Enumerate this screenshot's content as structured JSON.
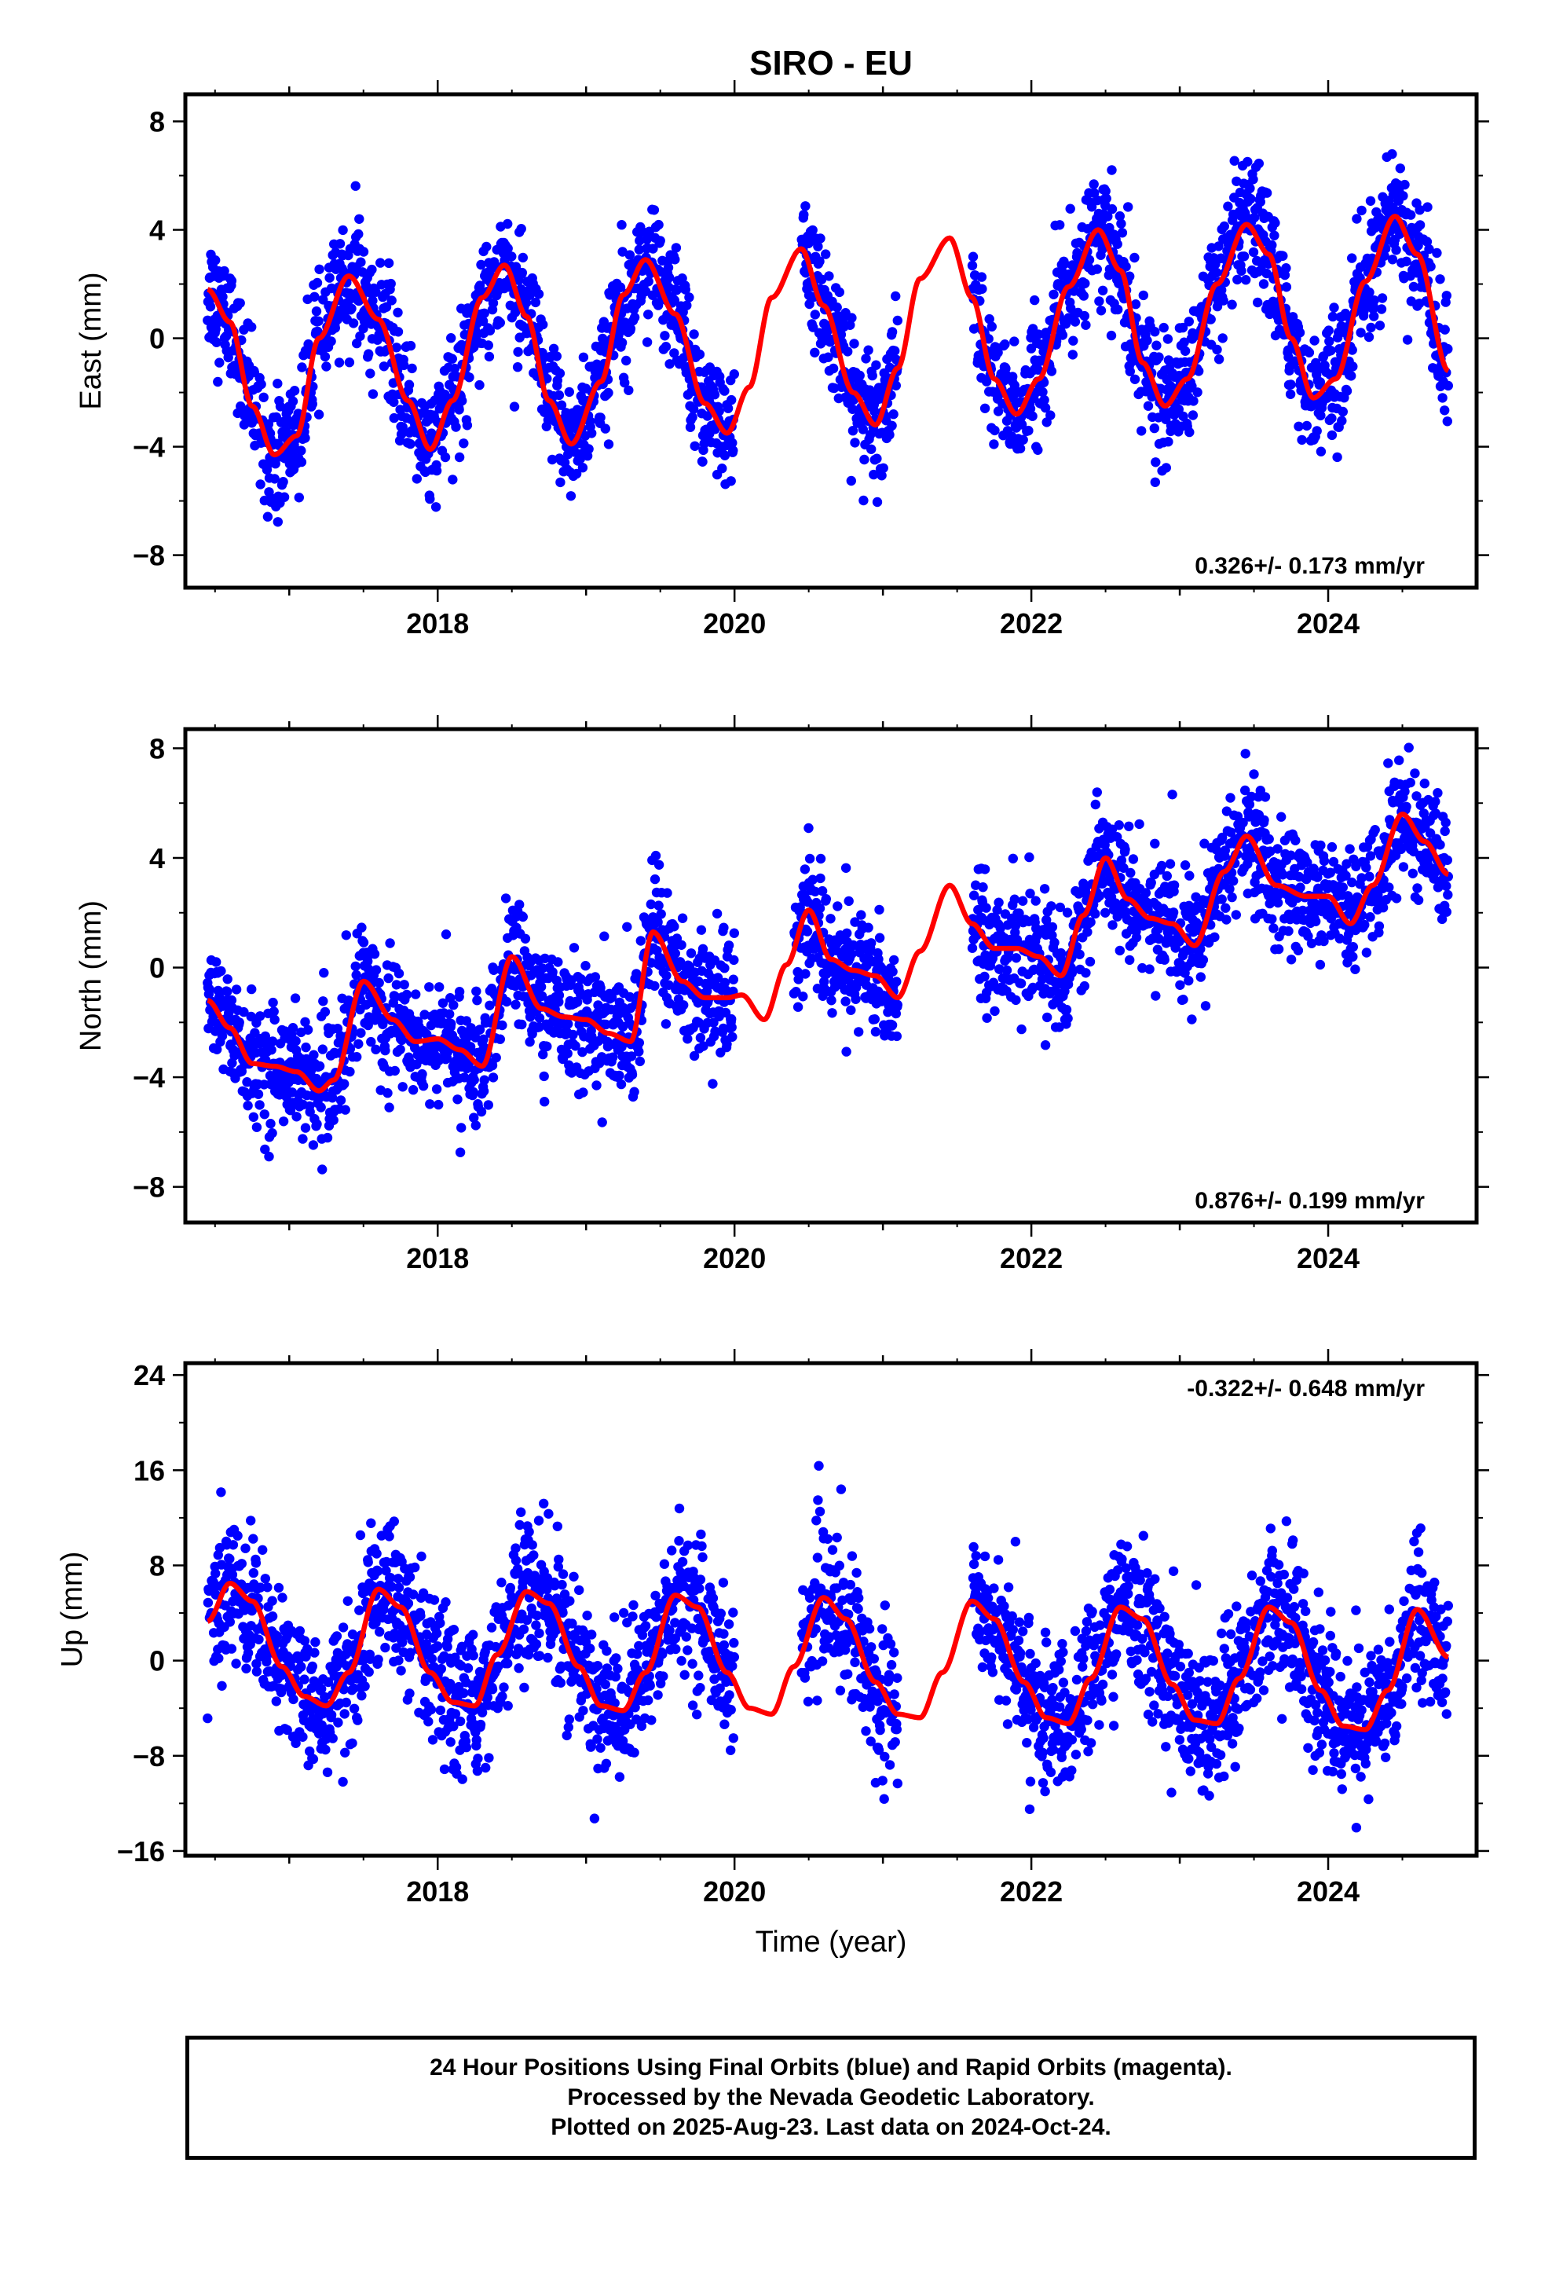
{
  "title": "SIRO - EU",
  "colors": {
    "points": "#0000ff",
    "fit": "#ff0000",
    "frame": "#000000"
  },
  "footer": {
    "line1": "24 Hour Positions Using Final Orbits (blue) and Rapid Orbits (magenta).",
    "line2": "Processed by the Nevada Geodetic Laboratory.",
    "line3": "Plotted on 2025-Aug-23. Last data on 2024-Oct-24."
  },
  "chart_data": [
    {
      "type": "scatter",
      "id": "east",
      "ylabel": "East (mm)",
      "xlabel": "",
      "xlim": [
        2016.3,
        2025.0
      ],
      "ylim": [
        -9.2,
        9.0
      ],
      "xticks": [
        2018,
        2020,
        2022,
        2024
      ],
      "yticks": [
        -8,
        -4,
        0,
        4,
        8
      ],
      "rate_label": "0.326+/- 0.173 mm/yr",
      "rate_position": "bottom-right",
      "series": [
        {
          "kind": "points",
          "x_range": [
            2016.45,
            2024.81
          ],
          "gaps": [
            [
              2020.0,
              2020.45
            ],
            [
              2021.1,
              2021.6
            ]
          ],
          "approx_scatter_sd": 1.1
        },
        {
          "kind": "fit",
          "x": [
            2016.45,
            2016.6,
            2016.75,
            2016.9,
            2017.05,
            2017.2,
            2017.4,
            2017.6,
            2017.8,
            2017.95,
            2018.1,
            2018.3,
            2018.45,
            2018.6,
            2018.75,
            2018.9,
            2019.1,
            2019.25,
            2019.4,
            2019.6,
            2019.8,
            2019.95,
            2020.1,
            2020.25,
            2020.45,
            2020.6,
            2020.8,
            2020.95,
            2021.1,
            2021.25,
            2021.45,
            2021.6,
            2021.75,
            2021.9,
            2022.05,
            2022.25,
            2022.45,
            2022.6,
            2022.75,
            2022.9,
            2023.05,
            2023.25,
            2023.45,
            2023.6,
            2023.75,
            2023.9,
            2024.05,
            2024.25,
            2024.45,
            2024.6,
            2024.81
          ],
          "y": [
            1.8,
            0.6,
            -2.5,
            -4.3,
            -3.6,
            0.0,
            2.3,
            0.7,
            -2.3,
            -4.1,
            -2.3,
            1.5,
            2.7,
            0.8,
            -2.3,
            -3.9,
            -1.6,
            1.6,
            2.9,
            0.9,
            -2.4,
            -3.5,
            -1.8,
            1.5,
            3.3,
            1.2,
            -2.0,
            -3.2,
            -1.1,
            2.2,
            3.7,
            1.5,
            -1.5,
            -2.8,
            -1.5,
            1.9,
            4.0,
            2.5,
            -0.9,
            -2.5,
            -1.5,
            2.0,
            4.2,
            3.1,
            0.0,
            -2.2,
            -1.5,
            2.1,
            4.5,
            3.1,
            -1.2
          ]
        }
      ]
    },
    {
      "type": "scatter",
      "id": "north",
      "ylabel": "North (mm)",
      "xlabel": "",
      "xlim": [
        2016.3,
        2025.0
      ],
      "ylim": [
        -9.3,
        8.7
      ],
      "xticks": [
        2018,
        2020,
        2022,
        2024
      ],
      "yticks": [
        -8,
        -4,
        0,
        4,
        8
      ],
      "rate_label": "0.876+/- 0.199 mm/yr",
      "rate_position": "bottom-right",
      "series": [
        {
          "kind": "points",
          "x_range": [
            2016.45,
            2024.81
          ],
          "gaps": [
            [
              2020.0,
              2020.4
            ],
            [
              2021.1,
              2021.6
            ]
          ],
          "approx_scatter_sd": 1.1
        },
        {
          "kind": "fit",
          "x": [
            2016.45,
            2016.6,
            2016.75,
            2016.9,
            2017.05,
            2017.2,
            2017.3,
            2017.5,
            2017.7,
            2017.85,
            2018.0,
            2018.15,
            2018.3,
            2018.5,
            2018.7,
            2018.85,
            2019.0,
            2019.15,
            2019.3,
            2019.45,
            2019.65,
            2019.8,
            2019.95,
            2020.05,
            2020.2,
            2020.35,
            2020.5,
            2020.65,
            2020.8,
            2020.95,
            2021.1,
            2021.25,
            2021.45,
            2021.6,
            2021.75,
            2021.9,
            2022.05,
            2022.2,
            2022.35,
            2022.5,
            2022.65,
            2022.8,
            2022.95,
            2023.1,
            2023.3,
            2023.45,
            2023.65,
            2023.85,
            2024.0,
            2024.15,
            2024.3,
            2024.5,
            2024.65,
            2024.81
          ],
          "y": [
            -1.2,
            -2.2,
            -3.5,
            -3.6,
            -3.8,
            -4.5,
            -4.1,
            -0.5,
            -1.9,
            -2.7,
            -2.6,
            -3.0,
            -3.6,
            0.4,
            -1.5,
            -1.8,
            -1.9,
            -2.4,
            -2.7,
            1.3,
            -0.5,
            -1.1,
            -1.1,
            -1.0,
            -1.9,
            0.1,
            2.1,
            0.3,
            -0.1,
            -0.3,
            -1.1,
            0.6,
            3.0,
            1.6,
            0.7,
            0.7,
            0.4,
            -0.3,
            1.9,
            4.0,
            2.5,
            1.8,
            1.6,
            0.8,
            3.5,
            4.8,
            3.0,
            2.6,
            2.6,
            1.6,
            3.0,
            5.6,
            4.6,
            3.4
          ]
        }
      ]
    },
    {
      "type": "scatter",
      "id": "up",
      "ylabel": "Up (mm)",
      "xlabel": "Time (year)",
      "xlim": [
        2016.3,
        2025.0
      ],
      "ylim": [
        -16.4,
        25.0
      ],
      "xticks": [
        2018,
        2020,
        2022,
        2024
      ],
      "yticks": [
        -16,
        -8,
        0,
        8,
        16,
        24
      ],
      "rate_label": "-0.322+/- 0.648 mm/yr",
      "rate_position": "top-right",
      "series": [
        {
          "kind": "points",
          "x_range": [
            2016.45,
            2024.81
          ],
          "gaps": [
            [
              2020.0,
              2020.45
            ],
            [
              2021.1,
              2021.6
            ]
          ],
          "approx_scatter_sd": 3.0
        },
        {
          "kind": "fit",
          "x": [
            2016.45,
            2016.6,
            2016.75,
            2016.95,
            2017.1,
            2017.25,
            2017.4,
            2017.6,
            2017.75,
            2017.95,
            2018.1,
            2018.25,
            2018.4,
            2018.6,
            2018.75,
            2018.95,
            2019.1,
            2019.25,
            2019.4,
            2019.6,
            2019.75,
            2019.95,
            2020.1,
            2020.25,
            2020.4,
            2020.6,
            2020.75,
            2020.95,
            2021.1,
            2021.25,
            2021.4,
            2021.6,
            2021.75,
            2021.95,
            2022.1,
            2022.25,
            2022.4,
            2022.6,
            2022.75,
            2022.95,
            2023.1,
            2023.25,
            2023.4,
            2023.6,
            2023.75,
            2023.95,
            2024.1,
            2024.25,
            2024.4,
            2024.6,
            2024.81
          ],
          "y": [
            3.3,
            6.5,
            5.0,
            -0.5,
            -3.0,
            -3.8,
            -1.0,
            6.0,
            4.5,
            -1.0,
            -3.5,
            -3.8,
            0.5,
            5.8,
            4.8,
            -0.5,
            -3.8,
            -4.2,
            -1.0,
            5.5,
            4.5,
            -1.0,
            -4.0,
            -4.5,
            -0.5,
            5.3,
            3.5,
            -1.8,
            -4.5,
            -4.8,
            -1.0,
            5.0,
            3.5,
            -1.8,
            -4.8,
            -5.3,
            -1.5,
            4.5,
            3.5,
            -2.0,
            -5.0,
            -5.3,
            -1.5,
            4.5,
            3.2,
            -2.5,
            -5.5,
            -5.8,
            -2.5,
            4.3,
            0.3
          ]
        }
      ]
    }
  ]
}
